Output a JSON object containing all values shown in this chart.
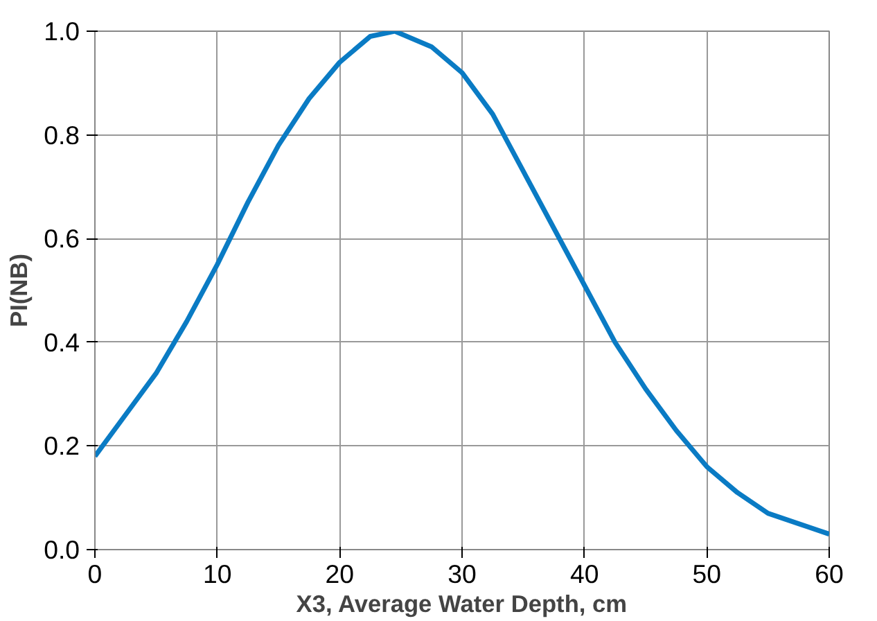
{
  "chart_data": {
    "type": "line",
    "xlabel": "X3, Average Water Depth, cm",
    "ylabel": "PI(NB)",
    "x": [
      0,
      2.5,
      5,
      7.5,
      10,
      12.5,
      15,
      17.5,
      20,
      22.5,
      24.5,
      27.5,
      30,
      32.5,
      35,
      37.5,
      40,
      42.5,
      45,
      47.5,
      50,
      52.5,
      55,
      57.5,
      60
    ],
    "series": [
      {
        "color": "#0a7bc4",
        "values": [
          0.18,
          0.26,
          0.34,
          0.44,
          0.55,
          0.67,
          0.78,
          0.87,
          0.94,
          0.99,
          1.0,
          0.97,
          0.92,
          0.84,
          0.73,
          0.62,
          0.51,
          0.4,
          0.31,
          0.23,
          0.16,
          0.11,
          0.07,
          0.05,
          0.03
        ]
      }
    ],
    "xlim": [
      0,
      60
    ],
    "ylim": [
      0,
      1.0
    ],
    "xticks": [
      0,
      10,
      20,
      30,
      40,
      50,
      60
    ],
    "yticks": [
      {
        "value": 0,
        "label": "0.0"
      },
      {
        "value": 0.2,
        "label": "0.2"
      },
      {
        "value": 0.4,
        "label": "0.4"
      },
      {
        "value": 0.6,
        "label": "0.6"
      },
      {
        "value": 0.8,
        "label": "0.8"
      },
      {
        "value": 1.0,
        "label": "1.0"
      }
    ],
    "grid": true,
    "marker": "none",
    "line_style": "solid"
  }
}
